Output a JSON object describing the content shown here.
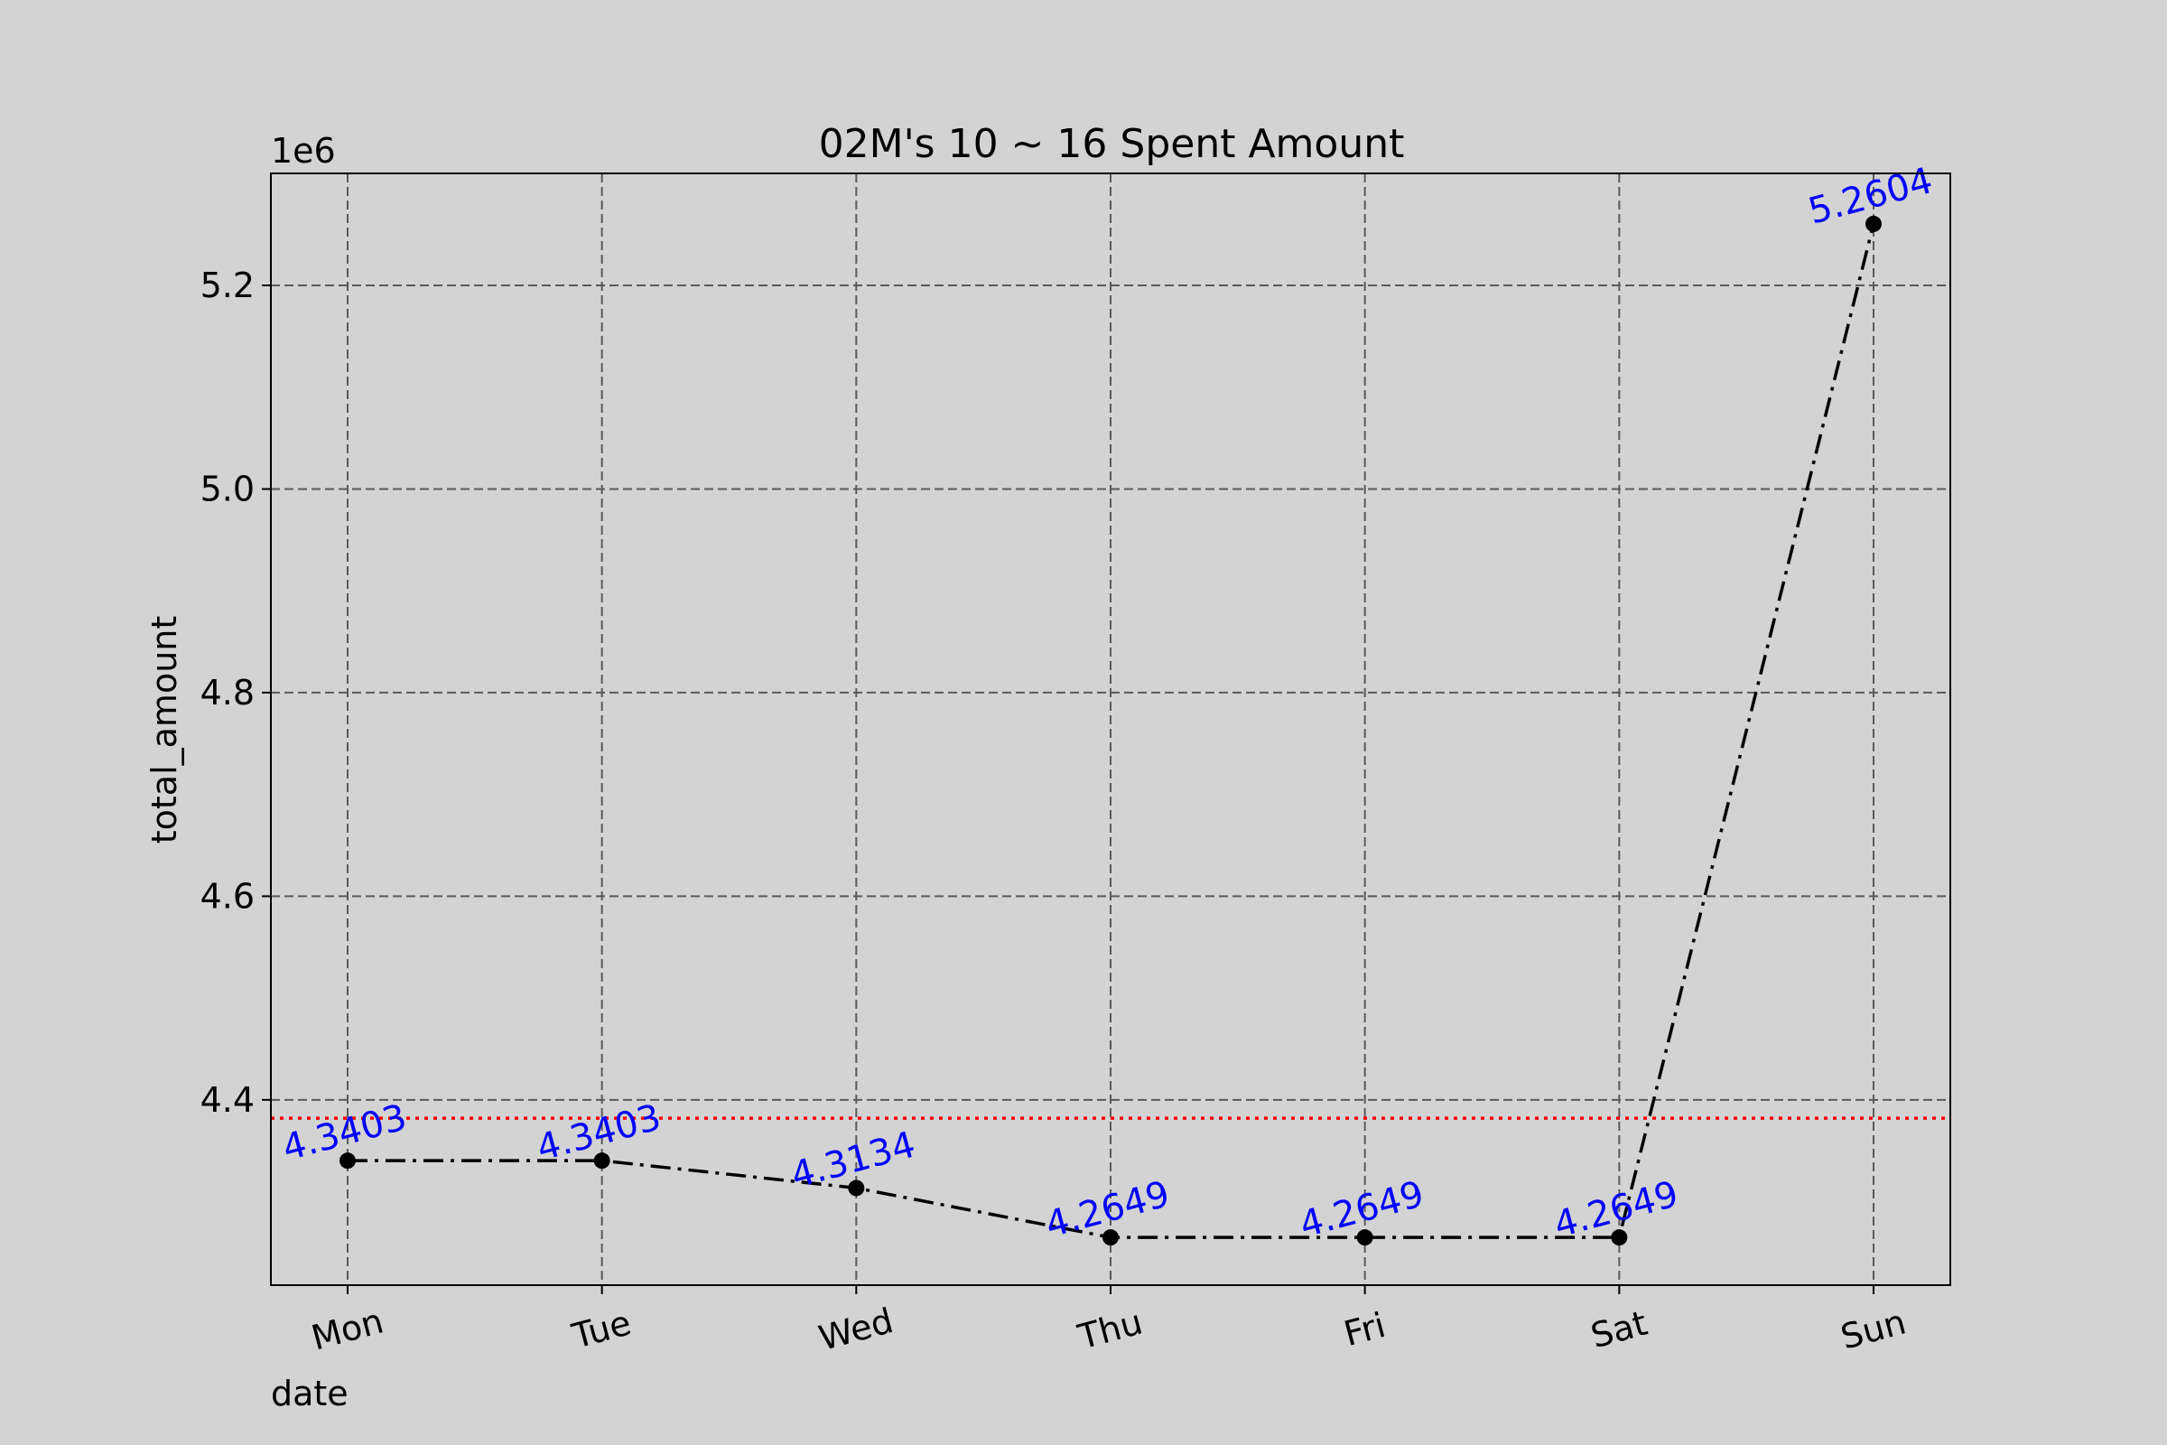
{
  "chart_data": {
    "type": "line",
    "title": "02M's 10 ~ 16 Spent Amount",
    "xlabel": "date",
    "ylabel": "total_amount",
    "y_offset_label": "1e6",
    "categories": [
      "Mon",
      "Tue",
      "Wed",
      "Thu",
      "Fri",
      "Sat",
      "Sun"
    ],
    "values": [
      4340300,
      4340300,
      4313400,
      4264900,
      4264900,
      4264900,
      5260400
    ],
    "data_labels": [
      "4.3403",
      "4.3403",
      "4.3134",
      "4.2649",
      "4.2649",
      "4.2649",
      "5.2604"
    ],
    "yticks": [
      4.4,
      4.6,
      4.8,
      5.0,
      5.2
    ],
    "ytick_labels": [
      "4.4",
      "4.6",
      "4.8",
      "5.0",
      "5.2"
    ],
    "ylim": [
      4218000,
      5310000
    ],
    "reference_line": {
      "value": 4382000,
      "color": "#ff0000",
      "style": "dotted"
    },
    "grid": true,
    "line_color": "#000000",
    "marker_color": "#000000",
    "label_color": "#0000ff",
    "background": "#d3d3d3"
  }
}
